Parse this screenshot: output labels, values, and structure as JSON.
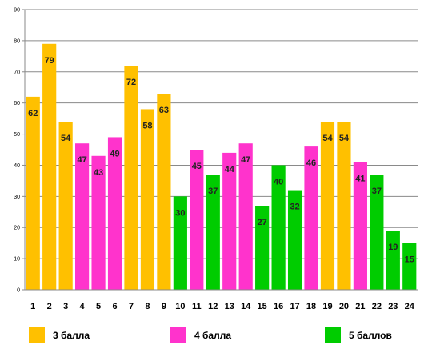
{
  "chart_data": {
    "type": "bar",
    "categories": [
      "1",
      "2",
      "3",
      "4",
      "5",
      "6",
      "7",
      "8",
      "9",
      "10",
      "11",
      "12",
      "13",
      "14",
      "15",
      "16",
      "17",
      "18",
      "19",
      "20",
      "21",
      "22",
      "23",
      "24"
    ],
    "values": [
      62,
      79,
      54,
      47,
      43,
      49,
      72,
      58,
      63,
      30,
      45,
      37,
      44,
      47,
      27,
      40,
      32,
      46,
      54,
      54,
      41,
      37,
      19,
      15
    ],
    "groups": [
      "3 балла",
      "3 балла",
      "3 балла",
      "4 балла",
      "4 балла",
      "4 балла",
      "3 балла",
      "3 балла",
      "3 балла",
      "5 баллов",
      "4 балла",
      "5 баллов",
      "4 балла",
      "4 балла",
      "5 баллов",
      "5 баллов",
      "5 баллов",
      "4 балла",
      "3 балла",
      "3 балла",
      "4 балла",
      "5 баллов",
      "5 баллов",
      "5 баллов"
    ],
    "ylim": [
      0,
      90
    ],
    "yticks": [
      0,
      10,
      20,
      30,
      40,
      50,
      60,
      70,
      80,
      90
    ],
    "grid": true,
    "legend": [
      {
        "name": "3 балла",
        "color": "#FFC000"
      },
      {
        "name": "4 балла",
        "color": "#FF33CC"
      },
      {
        "name": "5 баллов",
        "color": "#00CC00"
      }
    ],
    "legend_position": "bottom",
    "title": "",
    "xlabel": "",
    "ylabel": ""
  }
}
